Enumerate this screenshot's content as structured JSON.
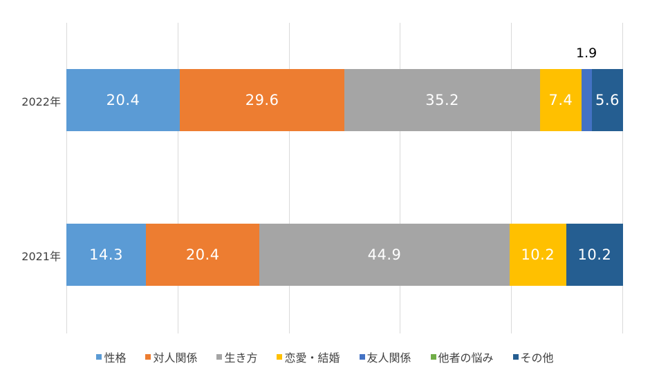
{
  "chart_data": {
    "type": "bar",
    "orientation": "horizontal",
    "stacked": "percent",
    "title": "",
    "xlabel": "",
    "ylabel": "",
    "xlim": [
      0,
      100
    ],
    "grid": true,
    "gridlines_at": [
      0,
      20,
      40,
      60,
      80,
      100
    ],
    "legend_position": "bottom",
    "categories": [
      "2022年",
      "2021年"
    ],
    "series": [
      {
        "name": "性格",
        "color": "#5b9bd5",
        "values": [
          20.4,
          14.3
        ]
      },
      {
        "name": "対人関係",
        "color": "#ed7d31",
        "values": [
          29.6,
          20.4
        ]
      },
      {
        "name": "生き方",
        "color": "#a5a5a5",
        "values": [
          35.2,
          44.9
        ]
      },
      {
        "name": "恋愛・結婚",
        "color": "#ffc000",
        "values": [
          7.4,
          10.2
        ]
      },
      {
        "name": "友人関係",
        "color": "#4472c4",
        "values": [
          1.9,
          0
        ]
      },
      {
        "name": "他者の悩み",
        "color": "#70ad47",
        "values": [
          0,
          0
        ]
      },
      {
        "name": "その他",
        "color": "#255e91",
        "values": [
          5.6,
          10.2
        ]
      }
    ],
    "data_labels": {
      "2022年": [
        "20.4",
        "29.6",
        "35.2",
        "7.4",
        "1.9",
        "",
        "5.6"
      ],
      "2021年": [
        "14.3",
        "20.4",
        "44.9",
        "10.2",
        "",
        "",
        "10.2"
      ]
    }
  },
  "rows": [
    {
      "label": "2022年",
      "segments": [
        {
          "value": 20.4,
          "text": "20.4",
          "color": "#5b9bd5"
        },
        {
          "value": 29.6,
          "text": "29.6",
          "color": "#ed7d31"
        },
        {
          "value": 35.2,
          "text": "35.2",
          "color": "#a5a5a5"
        },
        {
          "value": 7.4,
          "text": "7.4",
          "color": "#ffc000"
        },
        {
          "value": 1.9,
          "text": "",
          "color": "#4472c4"
        },
        {
          "value": 5.6,
          "text": "5.6",
          "color": "#255e91"
        }
      ],
      "external_label": "1.9"
    },
    {
      "label": "2021年",
      "segments": [
        {
          "value": 14.3,
          "text": "14.3",
          "color": "#5b9bd5"
        },
        {
          "value": 20.4,
          "text": "20.4",
          "color": "#ed7d31"
        },
        {
          "value": 44.9,
          "text": "44.9",
          "color": "#a5a5a5"
        },
        {
          "value": 10.2,
          "text": "10.2",
          "color": "#ffc000"
        },
        {
          "value": 10.2,
          "text": "10.2",
          "color": "#255e91"
        }
      ]
    }
  ],
  "legend": [
    {
      "label": "性格",
      "color": "#5b9bd5"
    },
    {
      "label": "対人関係",
      "color": "#ed7d31"
    },
    {
      "label": "生き方",
      "color": "#a5a5a5"
    },
    {
      "label": "恋愛・結婚",
      "color": "#ffc000"
    },
    {
      "label": "友人関係",
      "color": "#4472c4"
    },
    {
      "label": "他者の悩み",
      "color": "#70ad47"
    },
    {
      "label": "その他",
      "color": "#255e91"
    }
  ]
}
